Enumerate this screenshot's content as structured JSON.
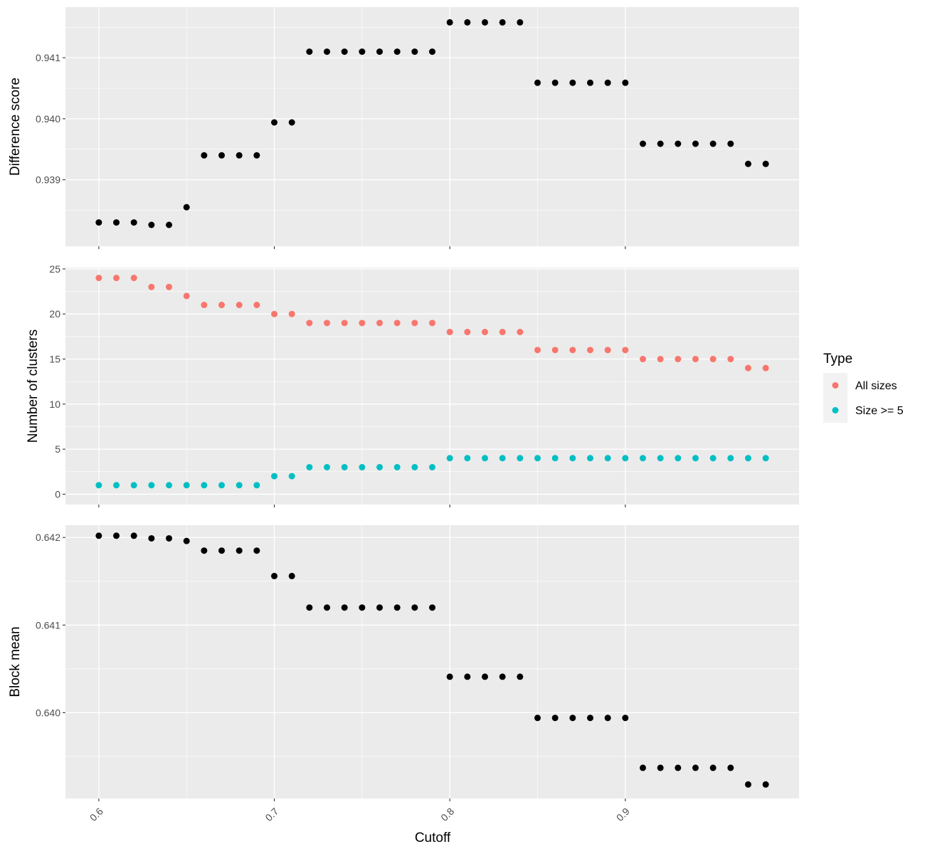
{
  "chart_data": {
    "type": "scatter",
    "x": [
      0.6,
      0.61,
      0.62,
      0.63,
      0.64,
      0.65,
      0.66,
      0.67,
      0.68,
      0.69,
      0.7,
      0.71,
      0.72,
      0.73,
      0.74,
      0.75,
      0.76,
      0.77,
      0.78,
      0.79,
      0.8,
      0.81,
      0.82,
      0.83,
      0.84,
      0.85,
      0.86,
      0.87,
      0.88,
      0.89,
      0.9,
      0.91,
      0.92,
      0.93,
      0.94,
      0.95,
      0.96,
      0.97,
      0.98
    ],
    "xlabel": "Cutoff",
    "x_ticks": [
      "0.6",
      "0.7",
      "0.8",
      "0.9"
    ],
    "xlim": [
      0.581,
      0.999
    ],
    "grid": true,
    "legend": {
      "title": "Type",
      "placement": "right",
      "entries": [
        {
          "label": "All sizes",
          "color": "#F8766D"
        },
        {
          "label": "Size >= 5",
          "color": "#00BFC4"
        }
      ]
    },
    "panels": [
      {
        "ylabel": "Difference score",
        "ylim": [
          0.93791,
          0.94183
        ],
        "y_ticks": [
          "0.939",
          "0.940",
          "0.941"
        ],
        "series": [
          {
            "color": "#000000",
            "values": [
              0.9383,
              0.9383,
              0.9383,
              0.93826,
              0.93826,
              0.93855,
              0.9394,
              0.9394,
              0.9394,
              0.9394,
              0.93994,
              0.93994,
              0.9411,
              0.9411,
              0.9411,
              0.9411,
              0.9411,
              0.9411,
              0.9411,
              0.9411,
              0.94158,
              0.94158,
              0.94158,
              0.94158,
              0.94158,
              0.94059,
              0.94059,
              0.94059,
              0.94059,
              0.94059,
              0.94059,
              0.93959,
              0.93959,
              0.93959,
              0.93959,
              0.93959,
              0.93959,
              0.93926,
              0.93926
            ]
          }
        ]
      },
      {
        "ylabel": "Number of clusters",
        "ylim": [
          -1.15,
          25.15
        ],
        "y_ticks": [
          "0",
          "5",
          "10",
          "15",
          "20",
          "25"
        ],
        "series": [
          {
            "name": "All sizes",
            "color": "#F8766D",
            "values": [
              24,
              24,
              24,
              23,
              23,
              22,
              21,
              21,
              21,
              21,
              20,
              20,
              19,
              19,
              19,
              19,
              19,
              19,
              19,
              19,
              18,
              18,
              18,
              18,
              18,
              16,
              16,
              16,
              16,
              16,
              16,
              15,
              15,
              15,
              15,
              15,
              15,
              14,
              14
            ]
          },
          {
            "name": "Size >= 5",
            "color": "#00BFC4",
            "values": [
              1,
              1,
              1,
              1,
              1,
              1,
              1,
              1,
              1,
              1,
              2,
              2,
              3,
              3,
              3,
              3,
              3,
              3,
              3,
              3,
              4,
              4,
              4,
              4,
              4,
              4,
              4,
              4,
              4,
              4,
              4,
              4,
              4,
              4,
              4,
              4,
              4,
              4,
              4
            ]
          }
        ]
      },
      {
        "ylabel": "Block mean",
        "ylim": [
          0.63902,
          0.64214
        ],
        "y_ticks": [
          "0.640",
          "0.641",
          "0.642"
        ],
        "series": [
          {
            "color": "#000000",
            "values": [
              0.64202,
              0.64202,
              0.64202,
              0.64199,
              0.64199,
              0.64196,
              0.64185,
              0.64185,
              0.64185,
              0.64185,
              0.64156,
              0.64156,
              0.6412,
              0.6412,
              0.6412,
              0.6412,
              0.6412,
              0.6412,
              0.6412,
              0.6412,
              0.64041,
              0.64041,
              0.64041,
              0.64041,
              0.64041,
              0.63994,
              0.63994,
              0.63994,
              0.63994,
              0.63994,
              0.63994,
              0.63937,
              0.63937,
              0.63937,
              0.63937,
              0.63937,
              0.63937,
              0.63918,
              0.63918
            ]
          }
        ]
      }
    ]
  }
}
